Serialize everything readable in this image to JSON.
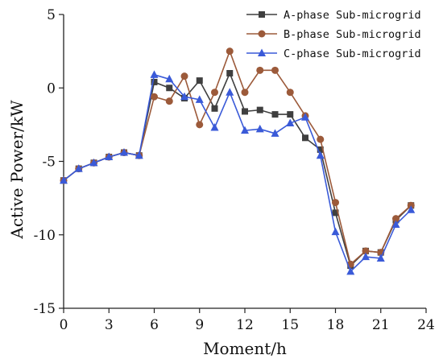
{
  "chart_data": {
    "type": "line",
    "title": "",
    "xlabel": "Moment/h",
    "ylabel": "Active Power/kW",
    "xlim": [
      0,
      24
    ],
    "ylim": [
      -15,
      5
    ],
    "x_ticks": [
      0,
      3,
      6,
      9,
      12,
      15,
      18,
      21,
      24
    ],
    "y_ticks": [
      5,
      0,
      -5,
      -10,
      -15
    ],
    "grid": false,
    "legend_position": "top-right",
    "x": [
      0,
      1,
      2,
      3,
      4,
      5,
      6,
      7,
      8,
      9,
      10,
      11,
      12,
      13,
      14,
      15,
      16,
      17,
      18,
      19,
      20,
      21,
      22,
      23
    ],
    "series": [
      {
        "name": "A-phase Sub-microgrid",
        "color": "#3f3f3f",
        "marker": "square",
        "values": [
          -6.3,
          -5.5,
          -5.1,
          -4.7,
          -4.4,
          -4.6,
          0.4,
          0.0,
          -0.7,
          0.5,
          -1.4,
          1.0,
          -1.6,
          -1.5,
          -1.8,
          -1.8,
          -3.4,
          -4.2,
          -8.5,
          -12.1,
          -11.1,
          -11.2,
          -9.0,
          -8.0
        ]
      },
      {
        "name": "B-phase Sub-microgrid",
        "color": "#9c5a3a",
        "marker": "circle",
        "values": [
          -6.3,
          -5.5,
          -5.1,
          -4.7,
          -4.4,
          -4.6,
          -0.6,
          -0.9,
          0.8,
          -2.5,
          -0.3,
          2.5,
          -0.3,
          1.2,
          1.2,
          -0.3,
          -1.9,
          -3.5,
          -7.8,
          -12.0,
          -11.1,
          -11.2,
          -8.9,
          -8.0
        ]
      },
      {
        "name": "C-phase Sub-microgrid",
        "color": "#3a5ad8",
        "marker": "triangle",
        "values": [
          -6.3,
          -5.5,
          -5.1,
          -4.7,
          -4.4,
          -4.6,
          0.9,
          0.6,
          -0.6,
          -0.8,
          -2.7,
          -0.3,
          -2.9,
          -2.8,
          -3.1,
          -2.4,
          -2.0,
          -4.6,
          -9.8,
          -12.5,
          -11.5,
          -11.6,
          -9.3,
          -8.3
        ]
      }
    ]
  }
}
